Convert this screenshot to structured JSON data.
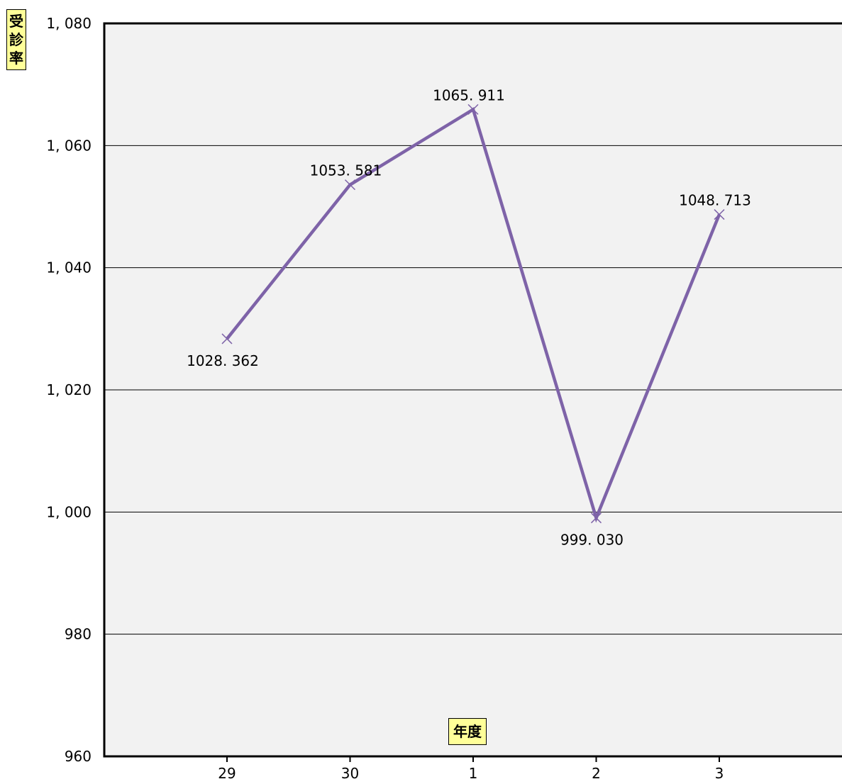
{
  "chart_data": {
    "type": "line",
    "title": "",
    "xlabel": "年度",
    "ylabel_chars": [
      "受",
      "診",
      "率"
    ],
    "categories": [
      "29",
      "30",
      "1",
      "2",
      "3"
    ],
    "series": [
      {
        "values": [
          1028.362,
          1053.581,
          1065.911,
          999.03,
          1048.713
        ]
      }
    ],
    "data_labels": [
      "1028. 362",
      "1053. 581",
      "1065. 911",
      "999. 030",
      "1048. 713"
    ],
    "data_label_position": [
      "below",
      "above",
      "above",
      "below",
      "above"
    ],
    "ylim": [
      960,
      1080
    ],
    "yticks": [
      960,
      980,
      1000,
      1020,
      1040,
      1060,
      1080
    ],
    "ytick_labels": [
      "960",
      "980",
      "1, 000",
      "1, 020",
      "1, 040",
      "1, 060",
      "1, 080"
    ],
    "grid": true,
    "colors": {
      "plot_bg": "#f2f2f2",
      "line": "#7e63a8",
      "grid": "#000000",
      "label_bg": "#ffff99"
    }
  }
}
